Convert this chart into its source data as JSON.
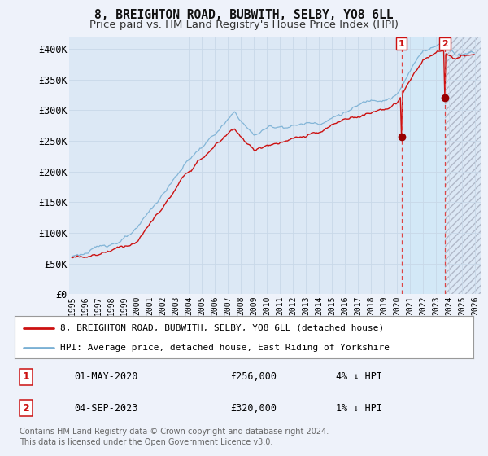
{
  "title": "8, BREIGHTON ROAD, BUBWITH, SELBY, YO8 6LL",
  "subtitle": "Price paid vs. HM Land Registry's House Price Index (HPI)",
  "ylim": [
    0,
    420000
  ],
  "yticks": [
    0,
    50000,
    100000,
    150000,
    200000,
    250000,
    300000,
    350000,
    400000
  ],
  "ytick_labels": [
    "£0",
    "£50K",
    "£100K",
    "£150K",
    "£200K",
    "£250K",
    "£300K",
    "£350K",
    "£400K"
  ],
  "background_color": "#eef2fa",
  "plot_bg_color": "#dce8f5",
  "grid_color": "#c8d8e8",
  "legend_label_red": "8, BREIGHTON ROAD, BUBWITH, SELBY, YO8 6LL (detached house)",
  "legend_label_blue": "HPI: Average price, detached house, East Riding of Yorkshire",
  "marker1_x": 2020.33,
  "marker1_price": 256000,
  "marker1_date_str": "01-MAY-2020",
  "marker1_pct": "4% ↓ HPI",
  "marker2_x": 2023.67,
  "marker2_price": 320000,
  "marker2_date_str": "04-SEP-2023",
  "marker2_pct": "1% ↓ HPI",
  "footer": "Contains HM Land Registry data © Crown copyright and database right 2024.\nThis data is licensed under the Open Government Licence v3.0.",
  "title_fontsize": 10.5,
  "subtitle_fontsize": 9.5,
  "x_start_year": 1995,
  "x_end_year": 2026,
  "hpi_color": "#7ab0d4",
  "price_color": "#cc1111",
  "red_dot_color": "#990000"
}
